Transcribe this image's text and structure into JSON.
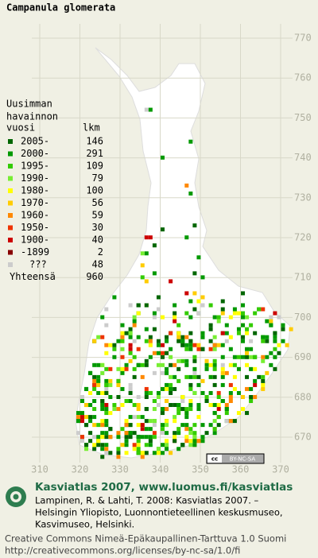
{
  "title": "Campanula glomerata",
  "legend": {
    "heading": [
      "Uusimman",
      "havainnon"
    ],
    "year_label": "vuosi",
    "count_label": "lkm",
    "rows": [
      {
        "label": "2005-",
        "count": 146,
        "color": "#006600"
      },
      {
        "label": "2000-",
        "count": 291,
        "color": "#009900"
      },
      {
        "label": "1995-",
        "count": 109,
        "color": "#33cc00"
      },
      {
        "label": "1990-",
        "count": 79,
        "color": "#77ee33"
      },
      {
        "label": "1980-",
        "count": 100,
        "color": "#ffff00"
      },
      {
        "label": "1970-",
        "count": 56,
        "color": "#ffcc00"
      },
      {
        "label": "1960-",
        "count": 59,
        "color": "#ff8800"
      },
      {
        "label": "1950-",
        "count": 30,
        "color": "#ee3300"
      },
      {
        "label": "1900-",
        "count": 40,
        "color": "#cc0000"
      },
      {
        "label": "-1899",
        "count": 2,
        "color": "#880000"
      },
      {
        "label": "???",
        "count": 48,
        "color": "#cccccc"
      }
    ],
    "total": {
      "label": "Yhteensä",
      "count": 960
    }
  },
  "grid": {
    "northing": [
      770,
      760,
      750,
      740,
      730,
      720,
      710,
      700,
      690,
      680,
      670
    ],
    "easting": [
      310,
      320,
      330,
      340,
      350,
      360,
      370
    ]
  },
  "badge": "BY-NC-SA",
  "footer": {
    "atlas": "Kasviatlas 2007, www.luomus.fi/kasviatlas",
    "citation": [
      "Lampinen, R. & Lahti, T. 2008: Kasviatlas 2007. –",
      "Helsingin Yliopisto, Luonnontieteellinen keskusmuseo,",
      "Kasvimuseo, Helsinki."
    ],
    "license": [
      "Creative Commons Nimeä-Epäkaupallinen-Tarttuva 1.0 Suomi",
      "http://creativecommons.org/licenses/by-nc-sa/1.0/fi"
    ]
  }
}
